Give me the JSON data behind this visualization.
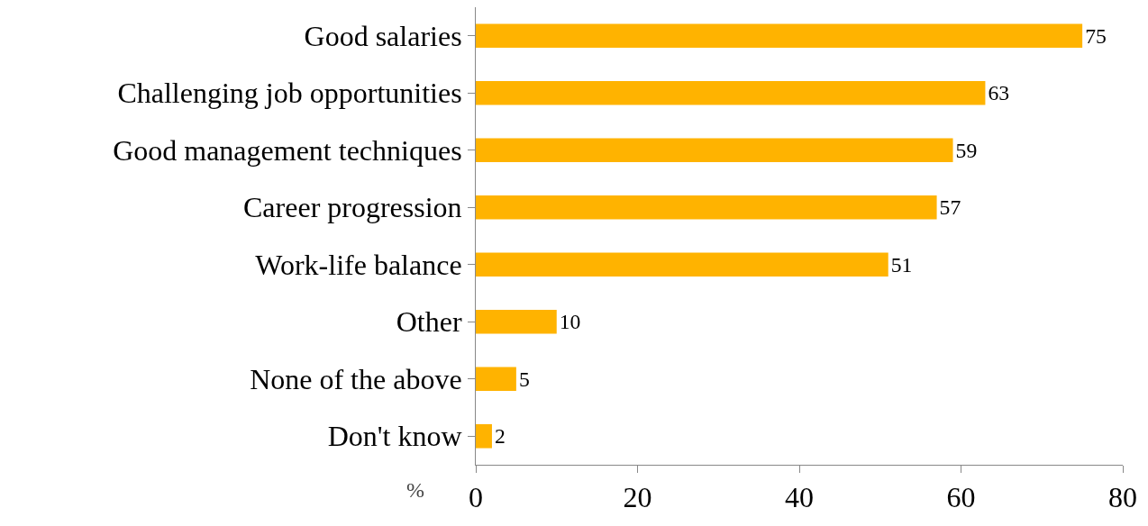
{
  "chart_data": {
    "type": "bar",
    "orientation": "horizontal",
    "xlabel": "%",
    "categories": [
      "Good salaries",
      "Challenging job opportunities",
      "Good management techniques",
      "Career progression",
      "Work-life balance",
      "Other",
      "None of the above",
      "Don't know"
    ],
    "values": [
      75,
      63,
      59,
      57,
      51,
      10,
      5,
      2
    ],
    "color": "#ffb300",
    "xlim": [
      0,
      80
    ],
    "xticks": [
      0,
      20,
      40,
      60,
      80
    ],
    "grid": false,
    "data_labels": true
  }
}
